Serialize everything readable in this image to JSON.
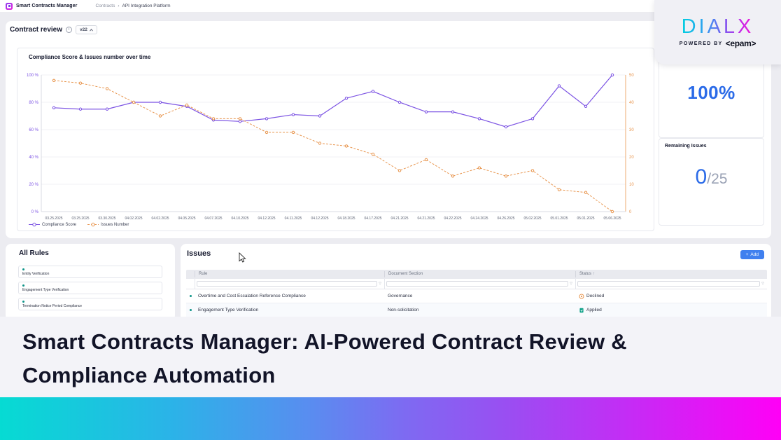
{
  "topbar": {
    "app_title": "Smart Contracts Manager",
    "breadcrumb": {
      "parent": "Contracts",
      "separator": "›",
      "current": "API Integration Platform"
    }
  },
  "review": {
    "title": "Contract review",
    "version_label": "v22"
  },
  "chart_data": {
    "type": "line",
    "title": "Compliance Score & Issues number over time",
    "x": [
      "03.25.2025",
      "03.25.2025",
      "03.30.2025",
      "04.02.2025",
      "04.02.2025",
      "04.05.2025",
      "04.07.2025",
      "04.10.2025",
      "04.12.2025",
      "04.11.2025",
      "04.12.2025",
      "04.18.2025",
      "04.17.2025",
      "04.21.2025",
      "04.21.2025",
      "04.22.2025",
      "04.24.2025",
      "04.26.2025",
      "05.02.2025",
      "05.01.2025",
      "05.01.2025",
      "05.06.2025"
    ],
    "series": [
      {
        "name": "Compliance Score",
        "axis": "left",
        "color": "#7b52e3",
        "style": "solid",
        "values": [
          76,
          75,
          75,
          80,
          80,
          77,
          67,
          66,
          68,
          71,
          70,
          83,
          88,
          80,
          73,
          73,
          68,
          62,
          68,
          92,
          77,
          100
        ]
      },
      {
        "name": "Issues Number",
        "axis": "right",
        "color": "#e8964f",
        "style": "dashed",
        "values": [
          48,
          47,
          45,
          40,
          35,
          39,
          34,
          34,
          29,
          29,
          25,
          24,
          21,
          15,
          19,
          13,
          16,
          13,
          15,
          8,
          7,
          0
        ]
      }
    ],
    "left_axis": {
      "min": 0,
      "max": 100,
      "ticks": [
        "100 %",
        "80 %",
        "60 %",
        "40 %",
        "20 %",
        "0 %"
      ]
    },
    "right_axis": {
      "min": 0,
      "max": 50,
      "ticks": [
        "50",
        "40",
        "30",
        "20",
        "10",
        "0"
      ]
    },
    "grid": true,
    "legend_position": "bottom-left"
  },
  "cards": {
    "score": {
      "value": "100%"
    },
    "remaining": {
      "title": "Remaining Issues",
      "value": "0",
      "total": "/25"
    }
  },
  "brand": {
    "name": "DIALX",
    "powered_by": "POWERED BY",
    "epam": "<epam>"
  },
  "rules": {
    "title": "All Rules",
    "items": [
      "Entity Verification",
      "Engagement Type Verification",
      "Termination Notice Period Compliance"
    ]
  },
  "issues": {
    "title": "Issues",
    "add_icon": "+",
    "add_label": "Add",
    "columns": [
      "Rule",
      "Document Section",
      "Status"
    ],
    "sort_indicator": "↑",
    "rows": [
      {
        "rule": "Overtime and Cost Escalation Reference Compliance",
        "section": "Governance",
        "status": "Declined"
      },
      {
        "rule": "Engagement Type Verification",
        "section": "Non-solicitation",
        "status": "Applied"
      }
    ]
  },
  "banner": {
    "line1": "Smart Contracts Manager: AI-Powered Contract Review &",
    "line2": "Compliance Automation"
  },
  "colors": {
    "accent_blue": "#2b6be8",
    "compliance_purple": "#7b52e3",
    "issues_orange": "#e8964f",
    "rule_teal": "#0d9488",
    "status_declined": "#e8964f",
    "status_applied": "#14a38b",
    "add_button": "#4080ef",
    "gradient": [
      "#06dbd3",
      "#2bb3e8",
      "#7e6af2",
      "#c32df5",
      "#ff00f6"
    ]
  }
}
